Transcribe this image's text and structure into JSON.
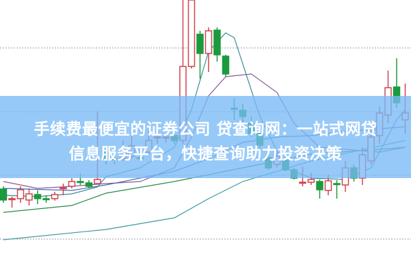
{
  "caption": {
    "line1": "手续费最便宜的证券公司 贷查询网：一站式网贷",
    "line2": "信息服务平台，快捷查询助力投资决策"
  },
  "colors": {
    "up": "#d0434d",
    "down": "#1c9a3e",
    "banner": "#78baf6",
    "grid": "#9a9a9a"
  },
  "chart_data": {
    "type": "candlestick",
    "title": "",
    "xlabel": "",
    "ylabel": "",
    "ylim": [
      0,
      40
    ],
    "grid": true,
    "gridlines": [
      33.0,
      23.7,
      14.4,
      5.1
    ],
    "legend": "none",
    "candles": [
      {
        "o": 12.4,
        "c": 10.8,
        "h": 12.8,
        "l": 10.4
      },
      {
        "o": 11.0,
        "c": 11.0,
        "h": 11.3,
        "l": 9.7,
        "up": true
      },
      {
        "o": 11.0,
        "c": 12.3,
        "h": 12.8,
        "l": 10.4
      },
      {
        "o": 10.8,
        "c": 11.7,
        "h": 12.5,
        "l": 10.0
      },
      {
        "o": 11.6,
        "c": 11.0,
        "h": 12.2,
        "l": 10.2
      },
      {
        "o": 11.0,
        "c": 11.0,
        "h": 11.5,
        "l": 10.4
      },
      {
        "o": 11.0,
        "c": 11.6,
        "h": 12.0,
        "l": 10.7
      },
      {
        "o": 12.6,
        "c": 12.6,
        "h": 13.2,
        "l": 11.5,
        "up": true
      },
      {
        "o": 12.8,
        "c": 13.5,
        "h": 14.0,
        "l": 12.5
      },
      {
        "o": 13.5,
        "c": 13.5,
        "h": 14.7,
        "l": 13.0
      },
      {
        "o": 13.3,
        "c": 12.8,
        "h": 13.7,
        "l": 12.5
      },
      {
        "o": 13.2,
        "c": 13.8,
        "h": 23.7,
        "l": 13.2
      },
      {
        "o": 17.8,
        "c": 16.8,
        "h": 18.5,
        "l": 16.0
      },
      {
        "o": 16.8,
        "c": 16.8,
        "h": 17.5,
        "l": 16.0
      },
      {
        "o": 16.8,
        "c": 17.8,
        "h": 19.5,
        "l": 16.5
      },
      {
        "o": 17.2,
        "c": 18.7,
        "h": 20.5,
        "l": 16.8
      },
      {
        "o": 17.0,
        "c": 17.0,
        "h": 18.5,
        "l": 16.5
      },
      {
        "o": 17.8,
        "c": 19.5,
        "h": 21.0,
        "l": 17.5
      },
      {
        "o": 20.0,
        "c": 20.0,
        "h": 20.5,
        "l": 19.0,
        "up": true
      },
      {
        "o": 20.0,
        "c": 20.0,
        "h": 20.5,
        "l": 19.2,
        "up": true
      },
      {
        "o": 20.2,
        "c": 19.5,
        "h": 20.5,
        "l": 19.0
      },
      {
        "o": 19.5,
        "c": 30.3,
        "h": 40.0,
        "l": 19.0
      },
      {
        "o": 30.3,
        "c": 40.0,
        "h": 40.0,
        "l": 30.0
      },
      {
        "o": 35.0,
        "c": 32.2,
        "h": 35.5,
        "l": 28.5
      },
      {
        "o": 32.2,
        "c": 35.5,
        "h": 36.0,
        "l": 29.5
      },
      {
        "o": 35.6,
        "c": 32.0,
        "h": 36.0,
        "l": 31.0
      },
      {
        "o": 31.8,
        "c": 29.2,
        "h": 32.0,
        "l": 28.8
      },
      {
        "o": 24.2,
        "c": 24.2,
        "h": 25.7,
        "l": 22.5
      },
      {
        "o": 23.9,
        "c": 23.0,
        "h": 24.8,
        "l": 22.2
      },
      {
        "o": 22.0,
        "c": 20.5,
        "h": 23.0,
        "l": 20.0
      },
      {
        "o": 20.5,
        "c": 18.8,
        "h": 21.0,
        "l": 17.8
      },
      {
        "o": 17.0,
        "c": 15.5,
        "h": 17.5,
        "l": 15.2
      },
      {
        "o": 16.0,
        "c": 17.2,
        "h": 18.0,
        "l": 15.5
      },
      {
        "o": 16.7,
        "c": 15.2,
        "h": 17.5,
        "l": 15.0
      },
      {
        "o": 15.2,
        "c": 14.0,
        "h": 15.5,
        "l": 13.8
      },
      {
        "o": 13.4,
        "c": 13.4,
        "h": 15.7,
        "l": 12.8,
        "up": true
      },
      {
        "o": 13.4,
        "c": 13.8,
        "h": 14.8,
        "l": 13.0
      },
      {
        "o": 13.5,
        "c": 12.3,
        "h": 13.8,
        "l": 11.0
      },
      {
        "o": 12.2,
        "c": 13.6,
        "h": 14.5,
        "l": 11.5
      },
      {
        "o": 13.2,
        "c": 13.2,
        "h": 13.7,
        "l": 11.0
      },
      {
        "o": 13.0,
        "c": 15.5,
        "h": 16.5,
        "l": 12.0
      },
      {
        "o": 15.5,
        "c": 14.0,
        "h": 16.0,
        "l": 13.5
      },
      {
        "o": 14.0,
        "c": 17.4,
        "h": 18.5,
        "l": 13.0
      },
      {
        "o": 16.5,
        "c": 20.0,
        "h": 22.0,
        "l": 16.0
      },
      {
        "o": 20.2,
        "c": 23.5,
        "h": 24.5,
        "l": 19.0
      },
      {
        "o": 23.2,
        "c": 27.2,
        "h": 29.7,
        "l": 22.0
      },
      {
        "o": 27.3,
        "c": 25.0,
        "h": 31.5,
        "l": 24.3
      },
      {
        "o": 22.5,
        "c": 23.5,
        "h": 27.8,
        "l": 20.5
      }
    ],
    "lines": [
      {
        "color": "#3a8a9a",
        "points": [
          [
            0,
            11.5
          ],
          [
            4,
            11.3
          ],
          [
            8,
            11.7
          ],
          [
            11,
            12.7
          ],
          [
            12,
            14.2
          ],
          [
            16,
            15.5
          ],
          [
            20,
            18.5
          ],
          [
            22,
            24
          ],
          [
            24,
            32.5
          ],
          [
            26,
            35.2
          ],
          [
            27,
            34.5
          ],
          [
            30,
            23
          ],
          [
            33,
            15.5
          ],
          [
            36,
            14
          ],
          [
            40,
            13.8
          ],
          [
            43,
            15.5
          ],
          [
            46,
            22.5
          ],
          [
            47,
            24
          ]
        ]
      },
      {
        "color": "#8a5a9a",
        "points": [
          [
            0,
            13.5
          ],
          [
            4,
            12.5
          ],
          [
            8,
            12.8
          ],
          [
            12,
            13.2
          ],
          [
            16,
            13.5
          ],
          [
            20,
            15.5
          ],
          [
            22,
            20
          ],
          [
            24,
            26
          ],
          [
            26,
            28.8
          ],
          [
            29,
            29.2
          ],
          [
            32,
            26.5
          ],
          [
            34,
            22
          ],
          [
            37,
            18.5
          ],
          [
            40,
            18.2
          ],
          [
            44,
            17.8
          ],
          [
            47,
            18.5
          ]
        ]
      },
      {
        "color": "#4a6ab0",
        "points": [
          [
            0,
            12.5
          ],
          [
            8,
            12.2
          ],
          [
            12,
            13
          ],
          [
            20,
            15
          ],
          [
            24,
            16.8
          ],
          [
            28,
            19.2
          ],
          [
            32,
            20
          ],
          [
            36,
            20.2
          ],
          [
            40,
            20.8
          ],
          [
            44,
            21.2
          ],
          [
            47,
            21.5
          ]
        ]
      },
      {
        "color": "#2a8a4a",
        "points": [
          [
            0,
            9
          ],
          [
            8,
            10
          ],
          [
            12,
            11.8
          ],
          [
            20,
            13.5
          ],
          [
            28,
            15.5
          ],
          [
            36,
            17.5
          ],
          [
            44,
            18.2
          ],
          [
            47,
            18.5
          ]
        ]
      },
      {
        "color": "#3a9a9a",
        "points": [
          [
            0,
            5
          ],
          [
            12,
            6.5
          ],
          [
            20,
            8.2
          ],
          [
            24,
            11
          ],
          [
            28,
            13.5
          ],
          [
            36,
            16.5
          ],
          [
            47,
            19.5
          ]
        ]
      }
    ]
  }
}
